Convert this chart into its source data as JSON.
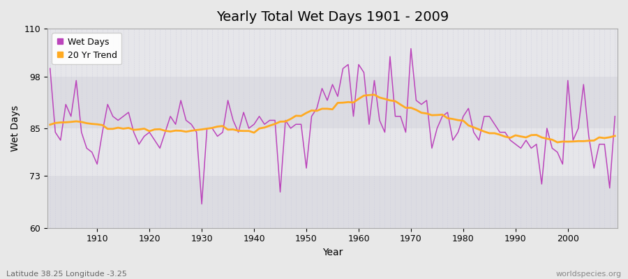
{
  "title": "Yearly Total Wet Days 1901 - 2009",
  "xlabel": "Year",
  "ylabel": "Wet Days",
  "subtitle": "Latitude 38.25 Longitude -3.25",
  "watermark": "worldspecies.org",
  "ylim": [
    60,
    110
  ],
  "yticks": [
    60,
    73,
    85,
    98,
    110
  ],
  "background_color": "#e8e8e8",
  "plot_bg_color": "#e0e0e4",
  "line_color_wet": "#bb44bb",
  "line_color_trend": "#ffaa22",
  "years": [
    1901,
    1902,
    1903,
    1904,
    1905,
    1906,
    1907,
    1908,
    1909,
    1910,
    1911,
    1912,
    1913,
    1914,
    1915,
    1916,
    1917,
    1918,
    1919,
    1920,
    1921,
    1922,
    1923,
    1924,
    1925,
    1926,
    1927,
    1928,
    1929,
    1930,
    1931,
    1932,
    1933,
    1934,
    1935,
    1936,
    1937,
    1938,
    1939,
    1940,
    1941,
    1942,
    1943,
    1944,
    1945,
    1946,
    1947,
    1948,
    1949,
    1950,
    1951,
    1952,
    1953,
    1954,
    1955,
    1956,
    1957,
    1958,
    1959,
    1960,
    1961,
    1962,
    1963,
    1964,
    1965,
    1966,
    1967,
    1968,
    1969,
    1970,
    1971,
    1972,
    1973,
    1974,
    1975,
    1976,
    1977,
    1978,
    1979,
    1980,
    1981,
    1982,
    1983,
    1984,
    1985,
    1986,
    1987,
    1988,
    1989,
    1990,
    1991,
    1992,
    1993,
    1994,
    1995,
    1996,
    1997,
    1998,
    1999,
    2000,
    2001,
    2002,
    2003,
    2004,
    2005,
    2006,
    2007,
    2008,
    2009
  ],
  "wet_days": [
    100,
    84,
    82,
    91,
    88,
    97,
    84,
    80,
    79,
    76,
    84,
    91,
    88,
    87,
    88,
    89,
    84,
    81,
    83,
    84,
    82,
    80,
    84,
    88,
    86,
    92,
    87,
    86,
    84,
    66,
    85,
    85,
    83,
    84,
    92,
    87,
    84,
    89,
    85,
    86,
    88,
    86,
    87,
    87,
    69,
    87,
    85,
    86,
    86,
    75,
    88,
    90,
    95,
    92,
    96,
    93,
    100,
    101,
    88,
    101,
    99,
    86,
    97,
    87,
    84,
    103,
    88,
    88,
    84,
    105,
    92,
    91,
    92,
    80,
    85,
    88,
    89,
    82,
    84,
    88,
    90,
    84,
    82,
    88,
    88,
    86,
    84,
    84,
    82,
    81,
    80,
    82,
    80,
    81,
    71,
    85,
    80,
    79,
    76,
    97,
    82,
    85,
    96,
    83,
    75,
    81,
    81,
    70,
    88
  ],
  "grid_color": "#ccccdd",
  "spine_color": "#aaaaaa",
  "tick_fontsize": 9,
  "label_fontsize": 10,
  "title_fontsize": 14
}
